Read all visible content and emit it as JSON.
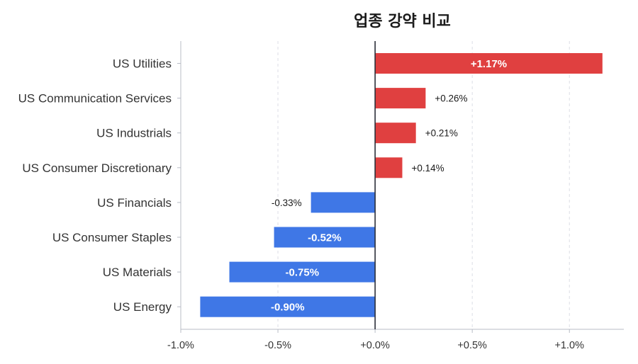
{
  "chart_data": {
    "type": "bar",
    "orientation": "horizontal",
    "title": "업종 강약 비교",
    "categories": [
      "US Utilities",
      "US Communication Services",
      "US Industrials",
      "US Consumer Discretionary",
      "US Financials",
      "US Consumer Staples",
      "US Materials",
      "US Energy"
    ],
    "values": [
      1.17,
      0.26,
      0.21,
      0.14,
      -0.33,
      -0.52,
      -0.75,
      -0.9
    ],
    "value_labels": [
      "+1.17%",
      "+0.26%",
      "+0.21%",
      "+0.14%",
      "-0.33%",
      "-0.52%",
      "-0.75%",
      "-0.90%"
    ],
    "xlim": [
      -1.0,
      1.28
    ],
    "xticks": [
      -1.0,
      -0.5,
      0.0,
      0.5,
      1.0
    ],
    "xtick_labels": [
      "-1.0%",
      "-0.5%",
      "+0.0%",
      "+0.5%",
      "+1.0%"
    ],
    "grid": "vertical dashed",
    "colors": {
      "positive": "#e04040",
      "negative": "#3f77e6",
      "zero_line": "#2b2f3a",
      "grid": "#dcdfe6",
      "axis": "#b8bcc6"
    }
  }
}
